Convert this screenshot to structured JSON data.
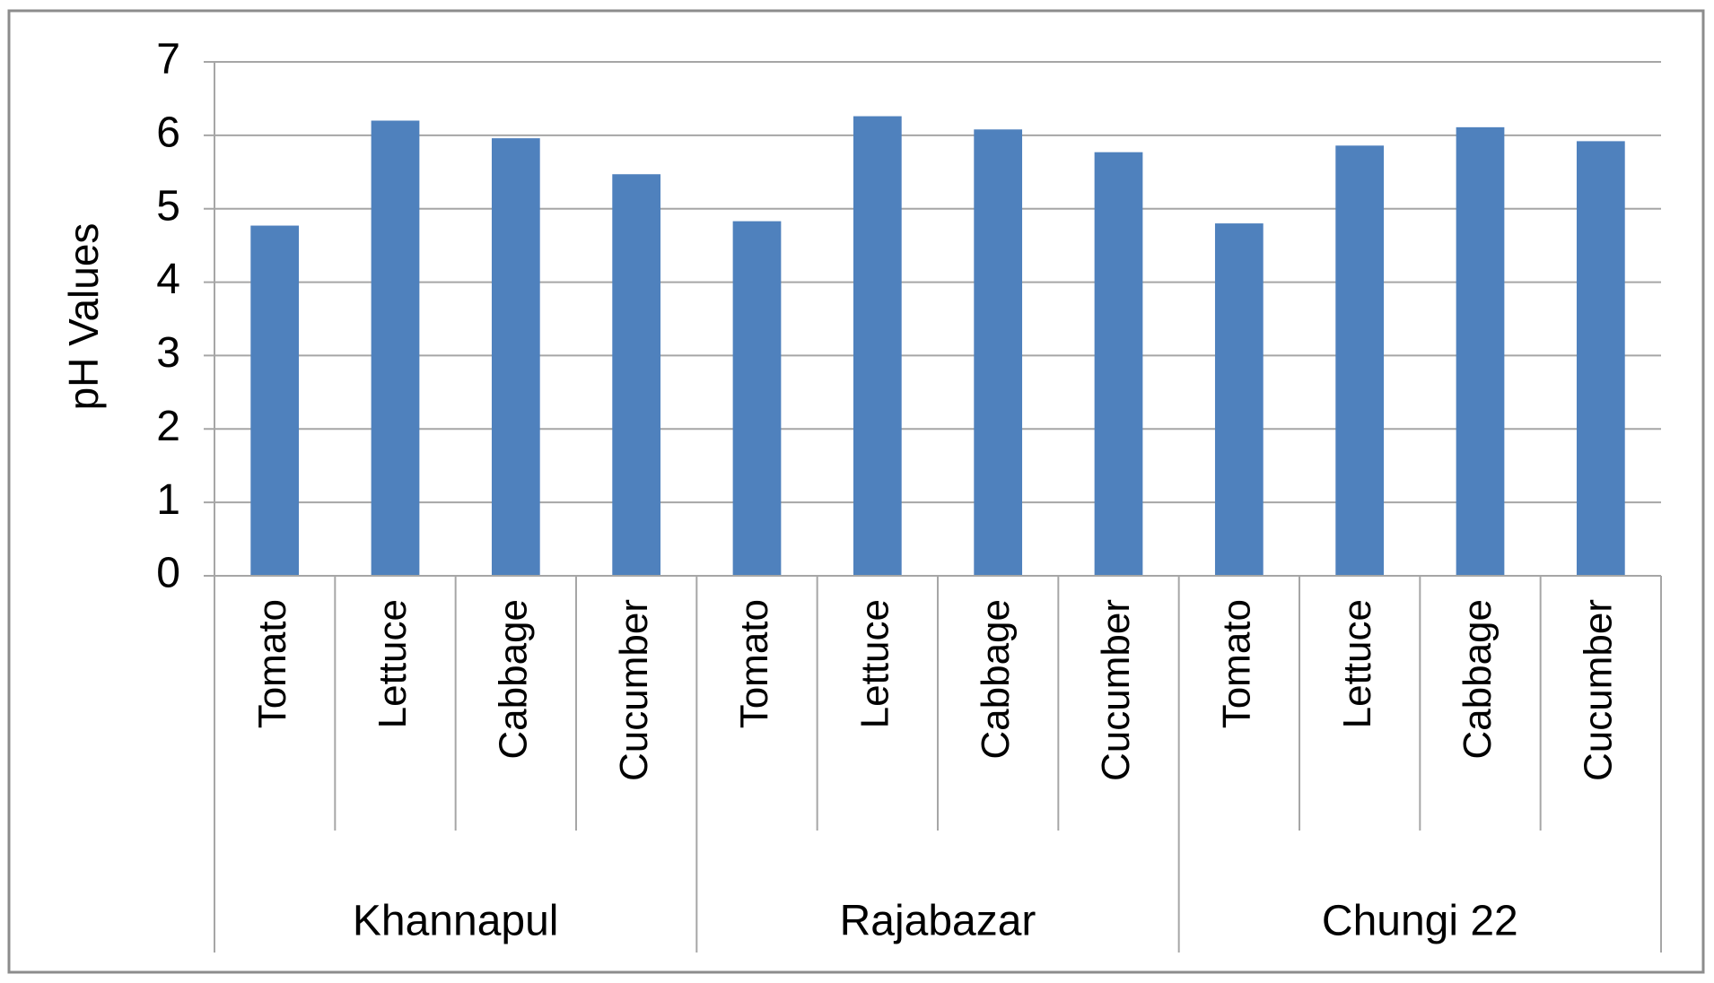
{
  "chart_data": {
    "type": "bar",
    "y_label": "pH Values",
    "categories": [
      "Tomato",
      "Lettuce",
      "Cabbage",
      "Cucumber",
      "Tomato",
      "Lettuce",
      "Cabbage",
      "Cucumber",
      "Tomato",
      "Lettuce",
      "Cabbage",
      "Cucumber"
    ],
    "groups": [
      "Khannapul",
      "Rajabazar",
      "Chungi 22"
    ],
    "values": [
      4.77,
      6.2,
      5.96,
      5.47,
      4.83,
      6.26,
      6.08,
      5.77,
      4.8,
      5.86,
      6.11,
      5.92
    ],
    "color": "#4f81bd",
    "ylim": [
      0,
      7
    ],
    "yticks": [
      0,
      1,
      2,
      3,
      4,
      5,
      6,
      7
    ],
    "grid": true
  }
}
